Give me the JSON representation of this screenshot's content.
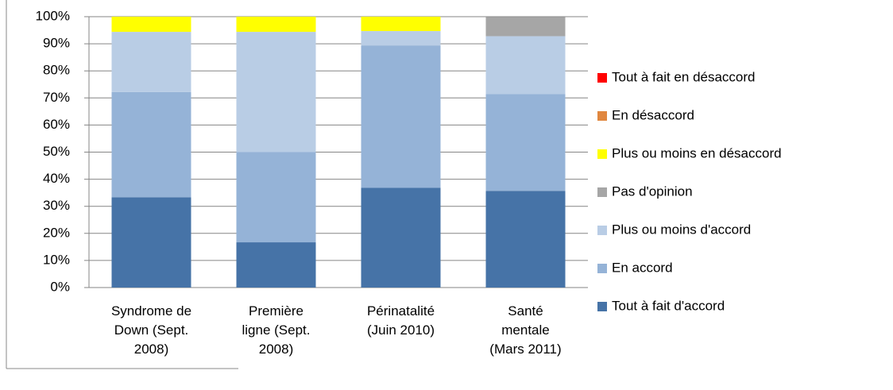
{
  "chart_data": {
    "type": "stacked_bar",
    "categories": [
      "Syndrome de Down (Sept. 2008)",
      "Première ligne (Sept. 2008)",
      "Périnatalité (Juin 2010)",
      "Santé mentale (Mars 2011)"
    ],
    "series": [
      {
        "name": "Tout à fait d'accord",
        "color": "#4673a7",
        "values": [
          33.3,
          16.7,
          36.8,
          35.7
        ]
      },
      {
        "name": "En accord",
        "color": "#95b3d7",
        "values": [
          38.9,
          33.3,
          52.6,
          35.7
        ]
      },
      {
        "name": "Plus ou moins d'accord",
        "color": "#b9cde5",
        "values": [
          22.2,
          44.4,
          5.3,
          21.4
        ]
      },
      {
        "name": "Pas d'opinion",
        "color": "#a6a6a6",
        "values": [
          0,
          0,
          0,
          7.1
        ]
      },
      {
        "name": "Plus ou moins en désaccord",
        "color": "#ffff00",
        "values": [
          5.6,
          5.6,
          5.3,
          0
        ]
      },
      {
        "name": "En désaccord",
        "color": "#e0873f",
        "values": [
          0,
          0,
          0,
          0
        ]
      },
      {
        "name": "Tout à fait en désaccord",
        "color": "#ff0000",
        "values": [
          0,
          0,
          0,
          0
        ]
      }
    ],
    "ylim": [
      0,
      100
    ],
    "yticks": [
      {
        "value": 0,
        "label": "0%"
      },
      {
        "value": 10,
        "label": "10%"
      },
      {
        "value": 20,
        "label": "20%"
      },
      {
        "value": 30,
        "label": "30%"
      },
      {
        "value": 40,
        "label": "40%"
      },
      {
        "value": 50,
        "label": "50%"
      },
      {
        "value": 60,
        "label": "60%"
      },
      {
        "value": 70,
        "label": "70%"
      },
      {
        "value": 80,
        "label": "80%"
      },
      {
        "value": 90,
        "label": "90%"
      },
      {
        "value": 100,
        "label": "100%"
      }
    ],
    "grid": true,
    "legend": "right"
  }
}
